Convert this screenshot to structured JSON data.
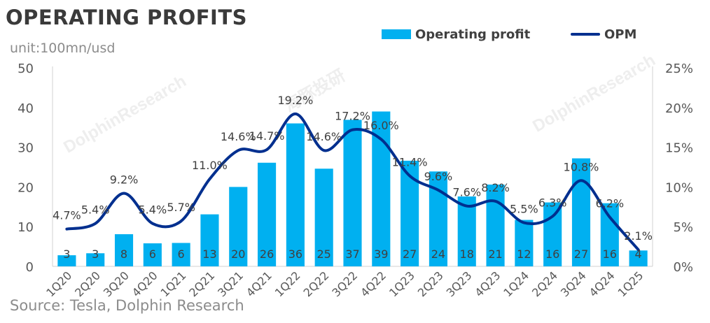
{
  "header": {
    "title": "OPERATING PROFITS",
    "unit": "unit:100mn/usd",
    "source": "Source: Tesla, Dolphin Research"
  },
  "legend": {
    "bar_label": "Operating profit",
    "line_label": "OPM"
  },
  "watermark": {
    "brand": "DolphinResearch",
    "cn": "海豚投研"
  },
  "colors": {
    "bar": "#00b0f0",
    "line": "#002f8f",
    "text": "#404040",
    "axis": "#595959"
  },
  "chart_data": {
    "type": "bar",
    "title": "OPERATING PROFITS",
    "xlabel": "",
    "ylabel": "unit:100mn/usd",
    "ylim": [
      0,
      50
    ],
    "yticks": [
      0,
      10,
      20,
      30,
      40,
      50
    ],
    "y2lim": [
      0,
      25
    ],
    "y2ticks": [
      "0%",
      "5%",
      "10%",
      "15%",
      "20%",
      "25%"
    ],
    "categories": [
      "1Q20",
      "2Q20",
      "3Q20",
      "4Q20",
      "1Q21",
      "2Q21",
      "3Q21",
      "4Q21",
      "1Q22",
      "2Q22",
      "3Q22",
      "4Q22",
      "1Q23",
      "2Q23",
      "3Q23",
      "4Q23",
      "1Q24",
      "2Q24",
      "3Q24",
      "4Q24",
      "1Q25"
    ],
    "series": [
      {
        "name": "Operating profit",
        "type": "bar",
        "axis": "left",
        "values": [
          2.8,
          3.3,
          8.1,
          5.8,
          5.9,
          13.1,
          20.0,
          26.1,
          36.0,
          24.6,
          36.9,
          39.0,
          26.6,
          23.9,
          17.6,
          20.6,
          11.7,
          16.1,
          27.2,
          15.9,
          4.0
        ],
        "labels": [
          "3",
          "3",
          "8",
          "6",
          "6",
          "13",
          "20",
          "26",
          "36",
          "25",
          "37",
          "39",
          "27",
          "24",
          "18",
          "21",
          "12",
          "16",
          "27",
          "16",
          "4"
        ]
      },
      {
        "name": "OPM",
        "type": "line",
        "axis": "right",
        "values": [
          4.7,
          5.4,
          9.2,
          5.4,
          5.7,
          11.0,
          14.6,
          14.7,
          19.2,
          14.6,
          17.2,
          16.0,
          11.4,
          9.6,
          7.6,
          8.2,
          5.5,
          6.3,
          10.8,
          6.2,
          2.1
        ],
        "labels": [
          "4.7%",
          "5.4%",
          "9.2%",
          "5.4%",
          "5.7%",
          "11.0%",
          "14.6%",
          "14.7%",
          "19.2%",
          "14.6%",
          "17.2%",
          "16.0%",
          "11.4%",
          "9.6%",
          "7.6%",
          "8.2%",
          "5.5%",
          "6.3%",
          "10.8%",
          "6.2%",
          "2.1%"
        ]
      }
    ]
  }
}
